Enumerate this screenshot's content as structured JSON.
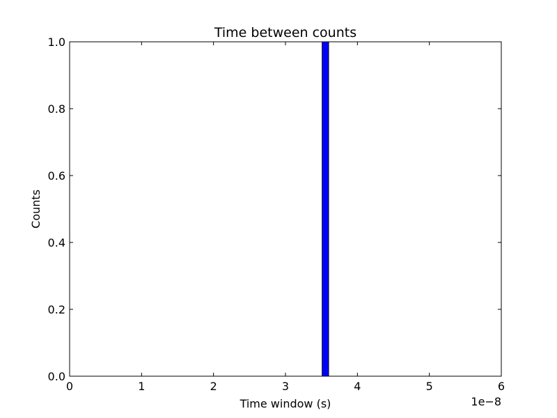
{
  "chart_data": {
    "type": "bar",
    "title": "Time between counts",
    "xlabel": "Time window (s)",
    "ylabel": "Counts",
    "x_offset_label": "1e−8",
    "xlim": [
      0,
      6
    ],
    "ylim": [
      0,
      1
    ],
    "x_ticks": [
      0,
      1,
      2,
      3,
      4,
      5,
      6
    ],
    "x_tick_labels": [
      "0",
      "1",
      "2",
      "3",
      "4",
      "5",
      "6"
    ],
    "y_ticks": [
      0,
      0.2,
      0.4,
      0.6,
      0.8,
      1.0
    ],
    "y_tick_labels": [
      "0.0",
      "0.2",
      "0.4",
      "0.6",
      "0.8",
      "1.0"
    ],
    "grid": false,
    "bars": [
      {
        "x_start": 3.51,
        "x_end": 3.6,
        "value": 1,
        "color": "#0000ff"
      }
    ]
  }
}
